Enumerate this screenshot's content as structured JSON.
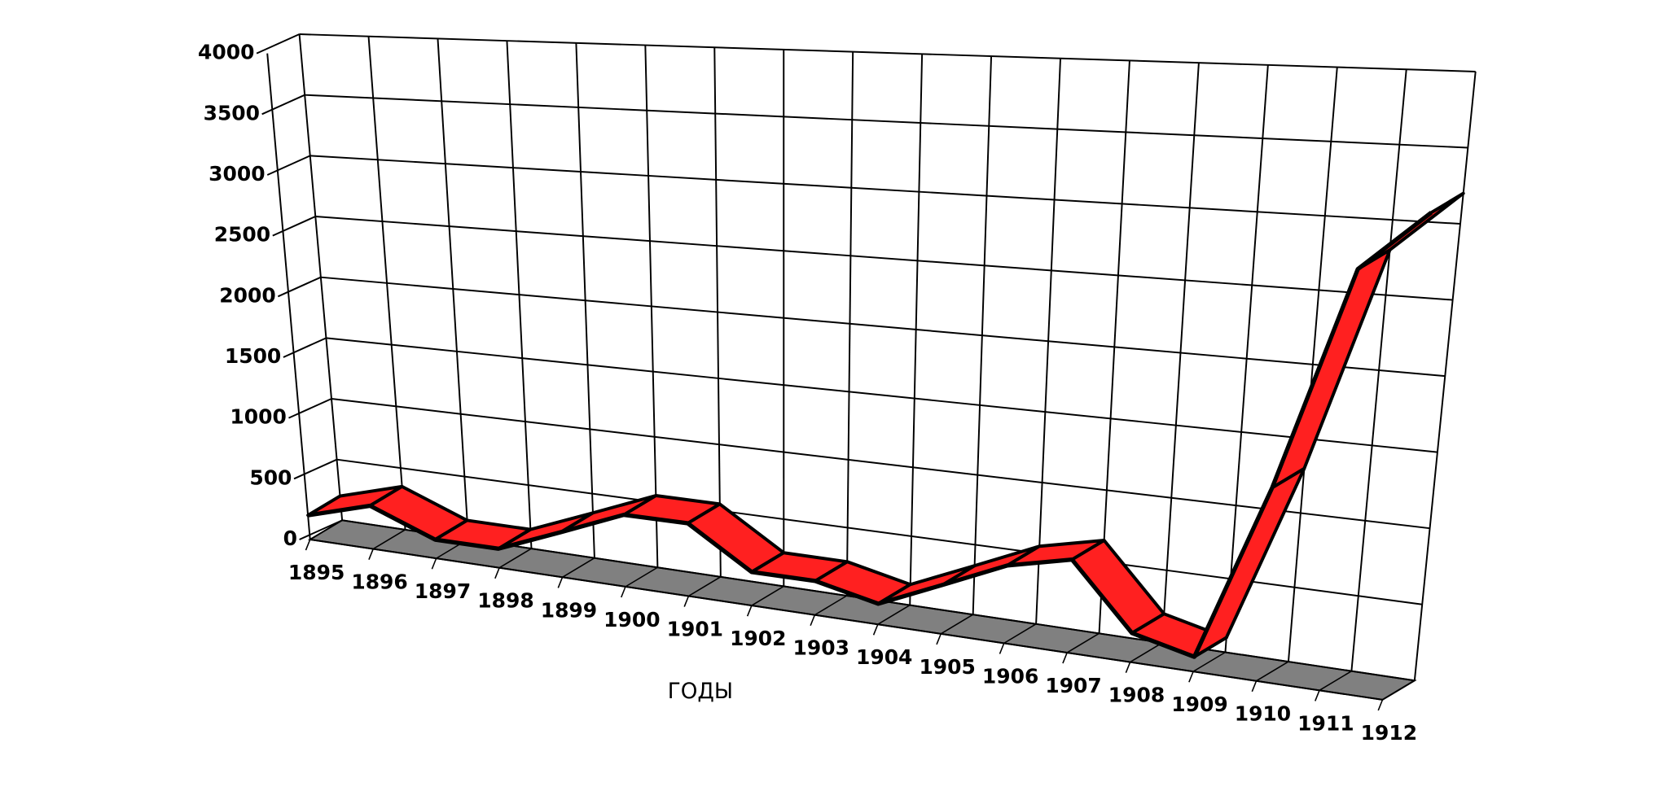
{
  "chart_data": {
    "type": "line3d",
    "x_label": "ГОДЫ",
    "categories": [
      "1895",
      "1896",
      "1897",
      "1898",
      "1899",
      "1900",
      "1901",
      "1902",
      "1903",
      "1904",
      "1905",
      "1906",
      "1907",
      "1908",
      "1909",
      "1910",
      "1911",
      "1912"
    ],
    "series": [
      {
        "name": "",
        "color": "#ff2020",
        "values": [
          200,
          350,
          150,
          150,
          350,
          550,
          550,
          250,
          250,
          150,
          350,
          550,
          650,
          200,
          100,
          1300,
          2800,
          3200
        ]
      }
    ],
    "ylim": [
      0,
      4000
    ],
    "yticks": [
      0,
      500,
      1000,
      1500,
      2000,
      2500,
      3000,
      3500,
      4000
    ],
    "grid": true
  }
}
